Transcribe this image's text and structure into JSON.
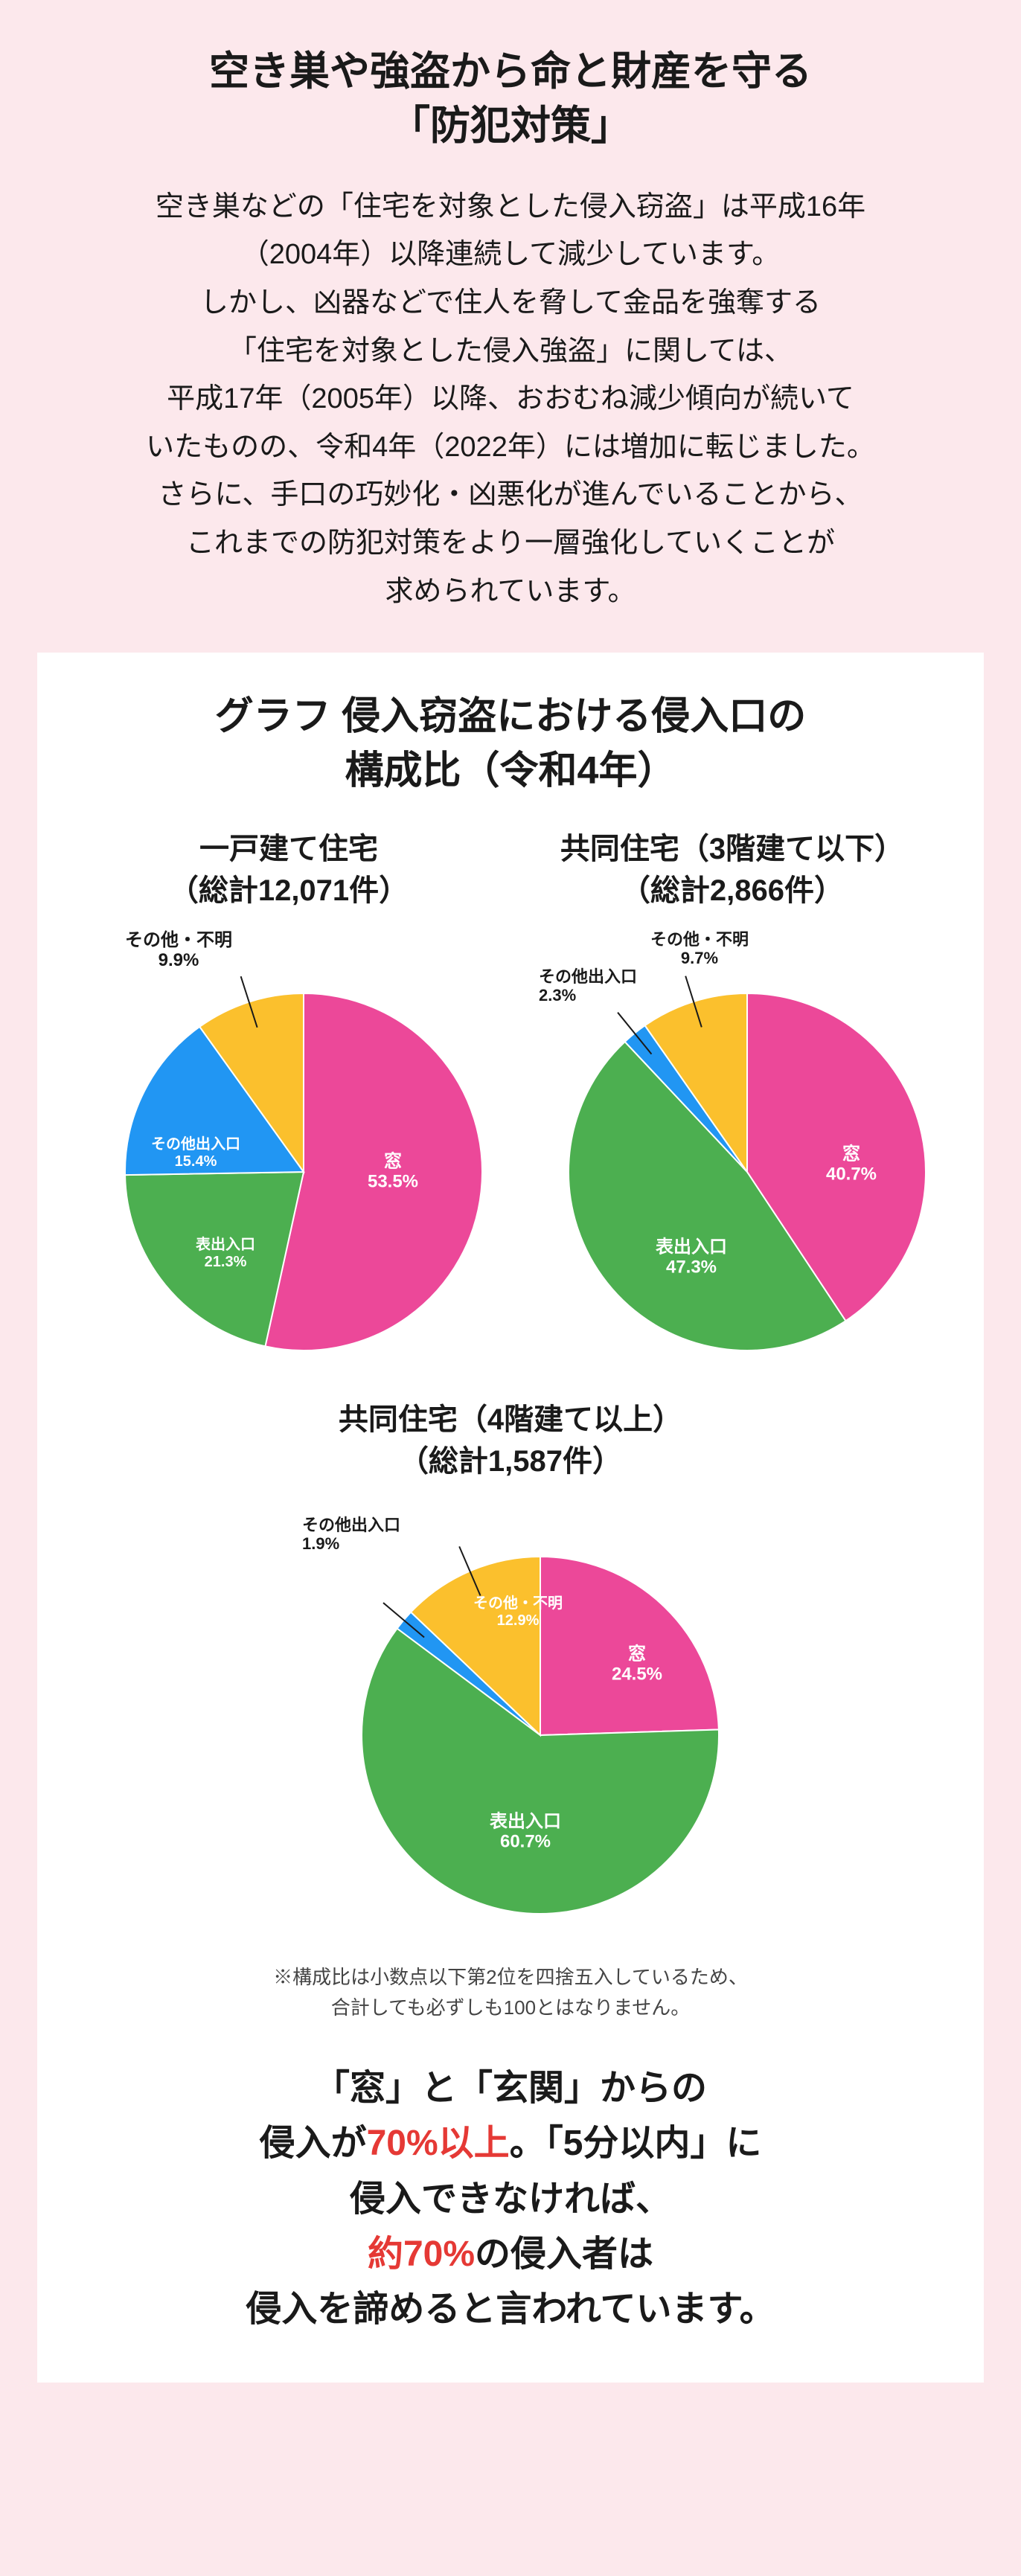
{
  "colors": {
    "page_bg": "#fce8ec",
    "panel_bg": "#ffffff",
    "text": "#1a1a1a",
    "accent_red": "#e53935",
    "pie_pink": "#ec4899",
    "pie_green": "#4caf50",
    "pie_blue": "#2196f3",
    "pie_yellow": "#fbc02d",
    "label_text": "#ffffff",
    "leader": "#1a1a1a"
  },
  "typography": {
    "heading_size": 54,
    "intro_size": 38,
    "chart_title_size": 52,
    "subtitle_size": 40,
    "footnote_size": 26,
    "conclusion_size": 48
  },
  "heading": {
    "l1": "空き巣や強盗から命と財産を守る",
    "l2": "「防犯対策」"
  },
  "intro": {
    "l1": "空き巣などの「住宅を対象とした侵入窃盗」は平成16年",
    "l2": "（2004年）以降連続して減少しています。",
    "l3": "しかし、凶器などで住人を脅して金品を強奪する",
    "l4": "「住宅を対象とした侵入強盗」に関しては、",
    "l5": "平成17年（2005年）以降、おおむね減少傾向が続いて",
    "l6": "いたものの、令和4年（2022年）には増加に転じました。",
    "l7": "さらに、手口の巧妙化・凶悪化が進んでいることから、",
    "l8": "これまでの防犯対策をより一層強化していくことが",
    "l9": "求められています。"
  },
  "chart_title": {
    "l1": "グラフ 侵入窃盗における侵入口の",
    "l2": "構成比（令和4年）"
  },
  "charts": {
    "pie1": {
      "title_l1": "一戸建て住宅",
      "title_l2": "（総計12,071件）",
      "radius": 240,
      "slices": [
        {
          "key": "window",
          "label": "窓",
          "value": 53.5,
          "value_s": "53.5%",
          "color": "#ec4899"
        },
        {
          "key": "front",
          "label": "表出入口",
          "value": 21.3,
          "value_s": "21.3%",
          "color": "#4caf50"
        },
        {
          "key": "other_entry",
          "label": "その他出入口",
          "value": 15.4,
          "value_s": "15.4%",
          "color": "#2196f3"
        },
        {
          "key": "other",
          "label": "その他・不明",
          "value": 9.9,
          "value_s": "9.9%",
          "color": "#fbc02d"
        }
      ],
      "out_label": {
        "text": "その他・不明",
        "pct": "9.9%"
      }
    },
    "pie2": {
      "title_l1": "共同住宅（3階建て以下）",
      "title_l2": "（総計2,866件）",
      "radius": 240,
      "slices": [
        {
          "key": "window",
          "label": "窓",
          "value": 40.7,
          "value_s": "40.7%",
          "color": "#ec4899"
        },
        {
          "key": "front",
          "label": "表出入口",
          "value": 47.3,
          "value_s": "47.3%",
          "color": "#4caf50"
        },
        {
          "key": "other_entry",
          "label": "その他出入口",
          "value": 2.3,
          "value_s": "2.3%",
          "color": "#2196f3"
        },
        {
          "key": "other",
          "label": "その他・不明",
          "value": 9.7,
          "value_s": "9.7%",
          "color": "#fbc02d"
        }
      ],
      "out1": {
        "text": "その他出入口",
        "pct": "2.3%"
      },
      "out2": {
        "text": "その他・不明",
        "pct": "9.7%"
      }
    },
    "pie3": {
      "title_l1": "共同住宅（4階建て以上）",
      "title_l2": "（総計1,587件）",
      "radius": 240,
      "slices": [
        {
          "key": "window",
          "label": "窓",
          "value": 24.5,
          "value_s": "24.5%",
          "color": "#ec4899"
        },
        {
          "key": "front",
          "label": "表出入口",
          "value": 60.7,
          "value_s": "60.7%",
          "color": "#4caf50"
        },
        {
          "key": "other_entry",
          "label": "その他出入口",
          "value": 1.9,
          "value_s": "1.9%",
          "color": "#2196f3"
        },
        {
          "key": "other",
          "label": "その他・不明",
          "value": 12.9,
          "value_s": "12.9%",
          "color": "#fbc02d"
        }
      ],
      "out1": {
        "text": "その他出入口",
        "pct": "1.9%"
      },
      "in_yellow": {
        "text": "その他・不明",
        "pct": "12.9%"
      }
    }
  },
  "footnote": {
    "l1": "※構成比は小数点以下第2位を四捨五入しているため、",
    "l2": "合計しても必ずしも100とはなりません。"
  },
  "conclusion": {
    "l1a": "「窓」と「玄関」からの",
    "l2a": "侵入が",
    "l2b": "70%以上",
    "l2c": "。「5分以内」に",
    "l3a": "侵入できなければ、",
    "l4a": "約70%",
    "l4b": "の侵入者は",
    "l5a": "侵入を諦めると言われています。"
  }
}
